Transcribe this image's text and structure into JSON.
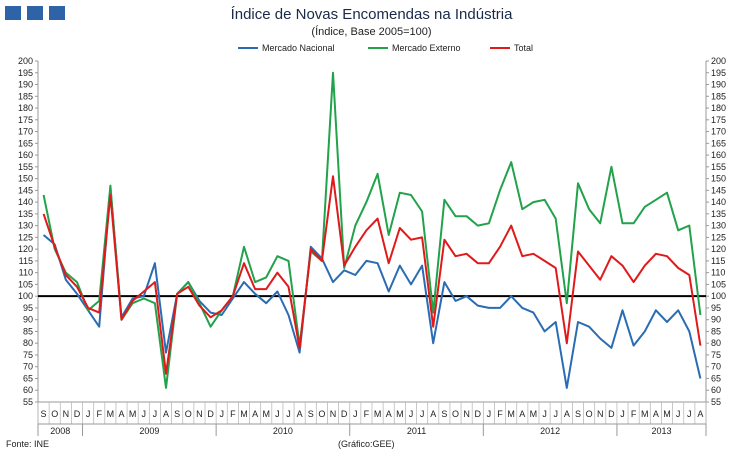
{
  "logo_color": "#2f63a8",
  "footer": {
    "source": "Fonte: INE",
    "credit": "(Gráfico:GEE)"
  },
  "chart_data": {
    "type": "line",
    "title": "Índice de Novas Encomendas na Indústria",
    "subtitle": "(Índice, Base 2005=100)",
    "xlabel": "",
    "ylabel": "",
    "ylim": [
      55,
      200
    ],
    "y_ticks": [
      55,
      60,
      65,
      70,
      75,
      80,
      85,
      90,
      95,
      100,
      105,
      110,
      115,
      120,
      125,
      130,
      135,
      140,
      145,
      150,
      155,
      160,
      165,
      170,
      175,
      180,
      185,
      190,
      195,
      200
    ],
    "reference_line": 100,
    "legend_position": "top",
    "categories": [
      "S",
      "O",
      "N",
      "D",
      "J",
      "F",
      "M",
      "A",
      "M",
      "J",
      "J",
      "A",
      "S",
      "O",
      "N",
      "D",
      "J",
      "F",
      "M",
      "A",
      "M",
      "J",
      "J",
      "A",
      "S",
      "O",
      "N",
      "D",
      "J",
      "F",
      "M",
      "A",
      "M",
      "J",
      "J",
      "A",
      "S",
      "O",
      "N",
      "D",
      "J",
      "F",
      "M",
      "A",
      "M",
      "J",
      "J",
      "A",
      "S",
      "O",
      "N",
      "D",
      "J",
      "F",
      "M",
      "A",
      "M",
      "J",
      "J",
      "A"
    ],
    "years": [
      {
        "label": "2008",
        "start": 0,
        "count": 4
      },
      {
        "label": "2009",
        "start": 4,
        "count": 12
      },
      {
        "label": "2010",
        "start": 16,
        "count": 12
      },
      {
        "label": "2011",
        "start": 28,
        "count": 12
      },
      {
        "label": "2012",
        "start": 40,
        "count": 12
      },
      {
        "label": "2013",
        "start": 52,
        "count": 8
      }
    ],
    "series": [
      {
        "name": "Mercado Nacional",
        "color": "#2a6cb4",
        "values": [
          126,
          122,
          107,
          101,
          94,
          87,
          146,
          91,
          99,
          100,
          114,
          76,
          101,
          106,
          98,
          93,
          92,
          99,
          106,
          101,
          97,
          102,
          92,
          76,
          121,
          116,
          106,
          111,
          109,
          115,
          114,
          102,
          113,
          105,
          113,
          80,
          106,
          98,
          100,
          96,
          95,
          95,
          100,
          95,
          93,
          85,
          89,
          61,
          89,
          87,
          82,
          78,
          94,
          79,
          85,
          94,
          89,
          94,
          85,
          65
        ]
      },
      {
        "name": "Mercado Externo",
        "color": "#22a24b",
        "values": [
          143,
          120,
          110,
          106,
          94,
          98,
          147,
          90,
          97,
          99,
          97,
          61,
          101,
          106,
          97,
          87,
          94,
          100,
          121,
          106,
          108,
          117,
          115,
          79,
          119,
          115,
          195,
          112,
          130,
          140,
          152,
          126,
          144,
          143,
          136,
          93,
          141,
          134,
          134,
          130,
          131,
          145,
          157,
          137,
          140,
          141,
          133,
          97,
          148,
          137,
          131,
          155,
          131,
          131,
          138,
          141,
          144,
          128,
          130,
          92
        ]
      },
      {
        "name": "Total",
        "color": "#e01a1a",
        "values": [
          135,
          121,
          109,
          104,
          95,
          93,
          143,
          90,
          98,
          102,
          106,
          67,
          101,
          104,
          96,
          91,
          94,
          100,
          114,
          103,
          103,
          110,
          104,
          78,
          120,
          115,
          151,
          113,
          121,
          128,
          133,
          114,
          129,
          124,
          125,
          87,
          124,
          117,
          118,
          114,
          114,
          121,
          130,
          117,
          118,
          115,
          112,
          80,
          119,
          113,
          107,
          117,
          113,
          106,
          113,
          118,
          117,
          112,
          109,
          79
        ]
      }
    ]
  }
}
